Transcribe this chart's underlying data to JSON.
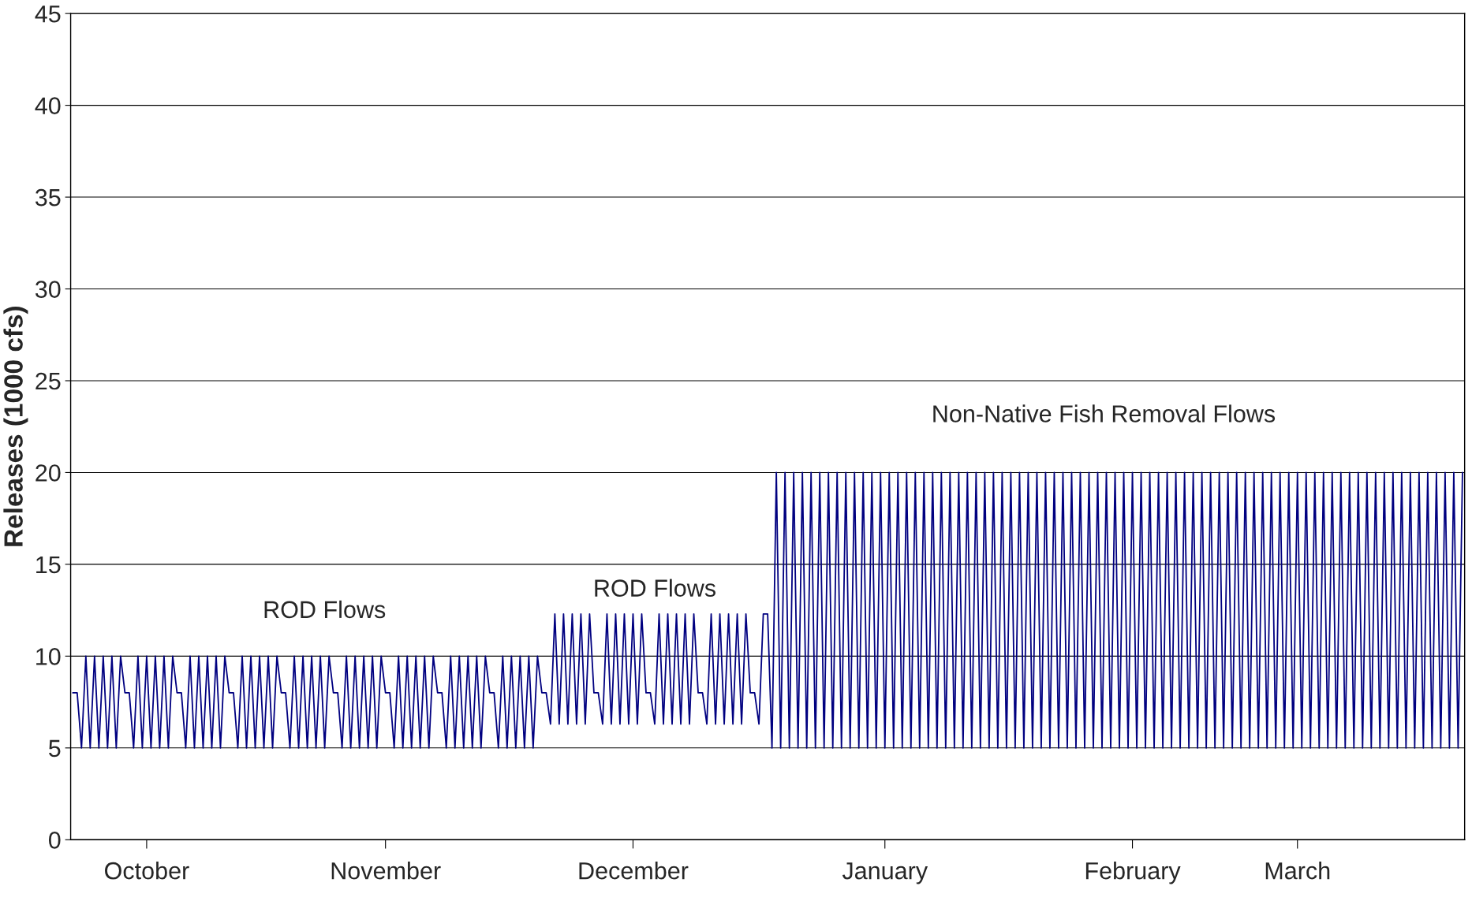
{
  "chart_data": {
    "type": "line",
    "ylabel": "Releases (1000 cfs)",
    "ylim": [
      0,
      45
    ],
    "yticks": [
      0,
      5,
      10,
      15,
      20,
      25,
      30,
      35,
      40,
      45
    ],
    "grid": "y",
    "annotations": [
      "ROD Flows",
      "ROD Flows",
      "Non-Native Fish Removal Flows"
    ],
    "categories": [
      null,
      null,
      null,
      null,
      null,
      null,
      null,
      null,
      null,
      null,
      null,
      null,
      null,
      null,
      null,
      null,
      null,
      "October",
      null,
      null,
      null,
      null,
      null,
      null,
      null,
      null,
      null,
      null,
      null,
      null,
      null,
      null,
      null,
      null,
      null,
      null,
      null,
      null,
      null,
      null,
      null,
      null,
      null,
      null,
      null,
      null,
      null,
      null,
      null,
      null,
      null,
      null,
      null,
      null,
      null,
      null,
      null,
      null,
      null,
      null,
      null,
      null,
      null,
      null,
      null,
      null,
      null,
      null,
      null,
      null,
      null,
      null,
      "November",
      null,
      null,
      null,
      null,
      null,
      null,
      null,
      null,
      null,
      null,
      null,
      null,
      null,
      null,
      null,
      null,
      null,
      null,
      null,
      null,
      null,
      null,
      null,
      null,
      null,
      null,
      null,
      null,
      null,
      null,
      null,
      null,
      null,
      null,
      null,
      null,
      null,
      null,
      null,
      null,
      null,
      null,
      null,
      null,
      null,
      null,
      null,
      null,
      null,
      null,
      null,
      null,
      null,
      null,
      null,
      null,
      "December",
      null,
      null,
      null,
      null,
      null,
      null,
      null,
      null,
      null,
      null,
      null,
      null,
      null,
      null,
      null,
      null,
      null,
      null,
      null,
      null,
      null,
      null,
      null,
      null,
      null,
      null,
      null,
      null,
      null,
      null,
      null,
      null,
      null,
      null,
      null,
      null,
      null,
      null,
      null,
      null,
      null,
      null,
      null,
      null,
      null,
      null,
      null,
      null,
      null,
      null,
      null,
      null,
      null,
      null,
      null,
      null,
      null,
      "January",
      null,
      null,
      null,
      null,
      null,
      null,
      null,
      null,
      null,
      null,
      null,
      null,
      null,
      null,
      null,
      null,
      null,
      null,
      null,
      null,
      null,
      null,
      null,
      null,
      null,
      null,
      null,
      null,
      null,
      null,
      null,
      null,
      null,
      null,
      null,
      null,
      null,
      null,
      null,
      null,
      null,
      null,
      null,
      null,
      null,
      null,
      null,
      null,
      null,
      null,
      null,
      null,
      null,
      null,
      null,
      null,
      "February",
      null,
      null,
      null,
      null,
      null,
      null,
      null,
      null,
      null,
      null,
      null,
      null,
      null,
      null,
      null,
      null,
      null,
      null,
      null,
      null,
      null,
      null,
      null,
      null,
      null,
      null,
      null,
      null,
      null,
      null,
      null,
      null,
      null,
      null,
      null,
      null,
      null,
      "March",
      null,
      null,
      null,
      null,
      null,
      null,
      null,
      null,
      null,
      null,
      null,
      null,
      null,
      null,
      null,
      null,
      null,
      null,
      null,
      null,
      null,
      null,
      null,
      null,
      null,
      null,
      null,
      null,
      null,
      null,
      null,
      null,
      null,
      null,
      null,
      null,
      null,
      null
    ],
    "series": [
      {
        "color": "#000080",
        "values": [
          8,
          8,
          5,
          10,
          5,
          10,
          5,
          10,
          5,
          10,
          5,
          10,
          8,
          8,
          5,
          10,
          5,
          10,
          5,
          10,
          5,
          10,
          5,
          10,
          8,
          8,
          5,
          10,
          5,
          10,
          5,
          10,
          5,
          10,
          5,
          10,
          8,
          8,
          5,
          10,
          5,
          10,
          5,
          10,
          5,
          10,
          5,
          10,
          8,
          8,
          5,
          10,
          5,
          10,
          5,
          10,
          5,
          10,
          5,
          10,
          8,
          8,
          5,
          10,
          5,
          10,
          5,
          10,
          5,
          10,
          5,
          10,
          8,
          8,
          5,
          10,
          5,
          10,
          5,
          10,
          5,
          10,
          5,
          10,
          8,
          8,
          5,
          10,
          5,
          10,
          5,
          10,
          5,
          10,
          5,
          10,
          8,
          8,
          5,
          10,
          5,
          10,
          5,
          10,
          5,
          10,
          5,
          10,
          8,
          8,
          6.3,
          12.3,
          6.3,
          12.3,
          6.3,
          12.3,
          6.3,
          12.3,
          6.3,
          12.3,
          8,
          8,
          6.3,
          12.3,
          6.3,
          12.3,
          6.3,
          12.3,
          6.3,
          12.3,
          6.3,
          12.3,
          8,
          8,
          6.3,
          12.3,
          6.3,
          12.3,
          6.3,
          12.3,
          6.3,
          12.3,
          6.3,
          12.3,
          8,
          8,
          6.3,
          12.3,
          6.3,
          12.3,
          6.3,
          12.3,
          6.3,
          12.3,
          6.3,
          12.3,
          8,
          8,
          6.3,
          12.3,
          12.3,
          5,
          20,
          5,
          20,
          5,
          20,
          5,
          20,
          5,
          20,
          5,
          20,
          5,
          20,
          5,
          20,
          5,
          20,
          5,
          20,
          5,
          20,
          5,
          20,
          5,
          20,
          5,
          20,
          5,
          20,
          5,
          20,
          5,
          20,
          5,
          20,
          5,
          20,
          5,
          20,
          5,
          20,
          5,
          20,
          5,
          20,
          5,
          20,
          5,
          20,
          5,
          20,
          5,
          20,
          5,
          20,
          5,
          20,
          5,
          20,
          5,
          20,
          5,
          20,
          5,
          20,
          5,
          20,
          5,
          20,
          5,
          20,
          5,
          20,
          5,
          20,
          5,
          20,
          5,
          20,
          5,
          20,
          5,
          20,
          5,
          20,
          5,
          20,
          5,
          20,
          5,
          20,
          5,
          20,
          5,
          20,
          5,
          20,
          5,
          20,
          5,
          20,
          5,
          20,
          5,
          20,
          5,
          20,
          5,
          20,
          5,
          20,
          5,
          20,
          5,
          20,
          5,
          20,
          5,
          20,
          5,
          20,
          5,
          20,
          5,
          20,
          5,
          20,
          5,
          20,
          5,
          20,
          5,
          20,
          5,
          20,
          5,
          20,
          5,
          20,
          5,
          20,
          5,
          20,
          5,
          20,
          5,
          20,
          5,
          20,
          5,
          20,
          5,
          20,
          5,
          20,
          5,
          20,
          5,
          20
        ]
      }
    ]
  }
}
